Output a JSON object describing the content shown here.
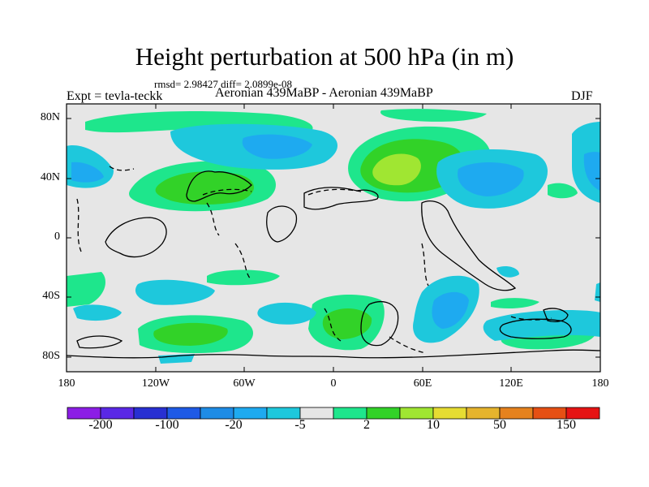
{
  "title": "Height perturbation at 500 hPa (in m)",
  "stats": "rmsd= 2.98427 diff= 2.0899e-08",
  "left_label": "Expt = tevla-teckk",
  "center_label": "Aeronian 439MaBP - Aeronian 439MaBP",
  "right_label": "DJF",
  "lat_ticks": [
    "80N",
    "40N",
    "0",
    "40S",
    "80S"
  ],
  "lon_ticks": [
    "180",
    "120W",
    "60W",
    "0",
    "60E",
    "120E",
    "180"
  ],
  "colorbar": {
    "colors": [
      "#8c1ee6",
      "#5a28e6",
      "#2830d2",
      "#1e5ae6",
      "#1e8ce6",
      "#1eaaf0",
      "#1ec8dc",
      "#e6e6e6",
      "#1ee68c",
      "#32d228",
      "#a0e632",
      "#e6dc32",
      "#e6b42d",
      "#e6821e",
      "#e65014",
      "#e61414"
    ],
    "labels": [
      "-200",
      "-100",
      "-20",
      "-5",
      "2",
      "10",
      "50",
      "150"
    ]
  }
}
